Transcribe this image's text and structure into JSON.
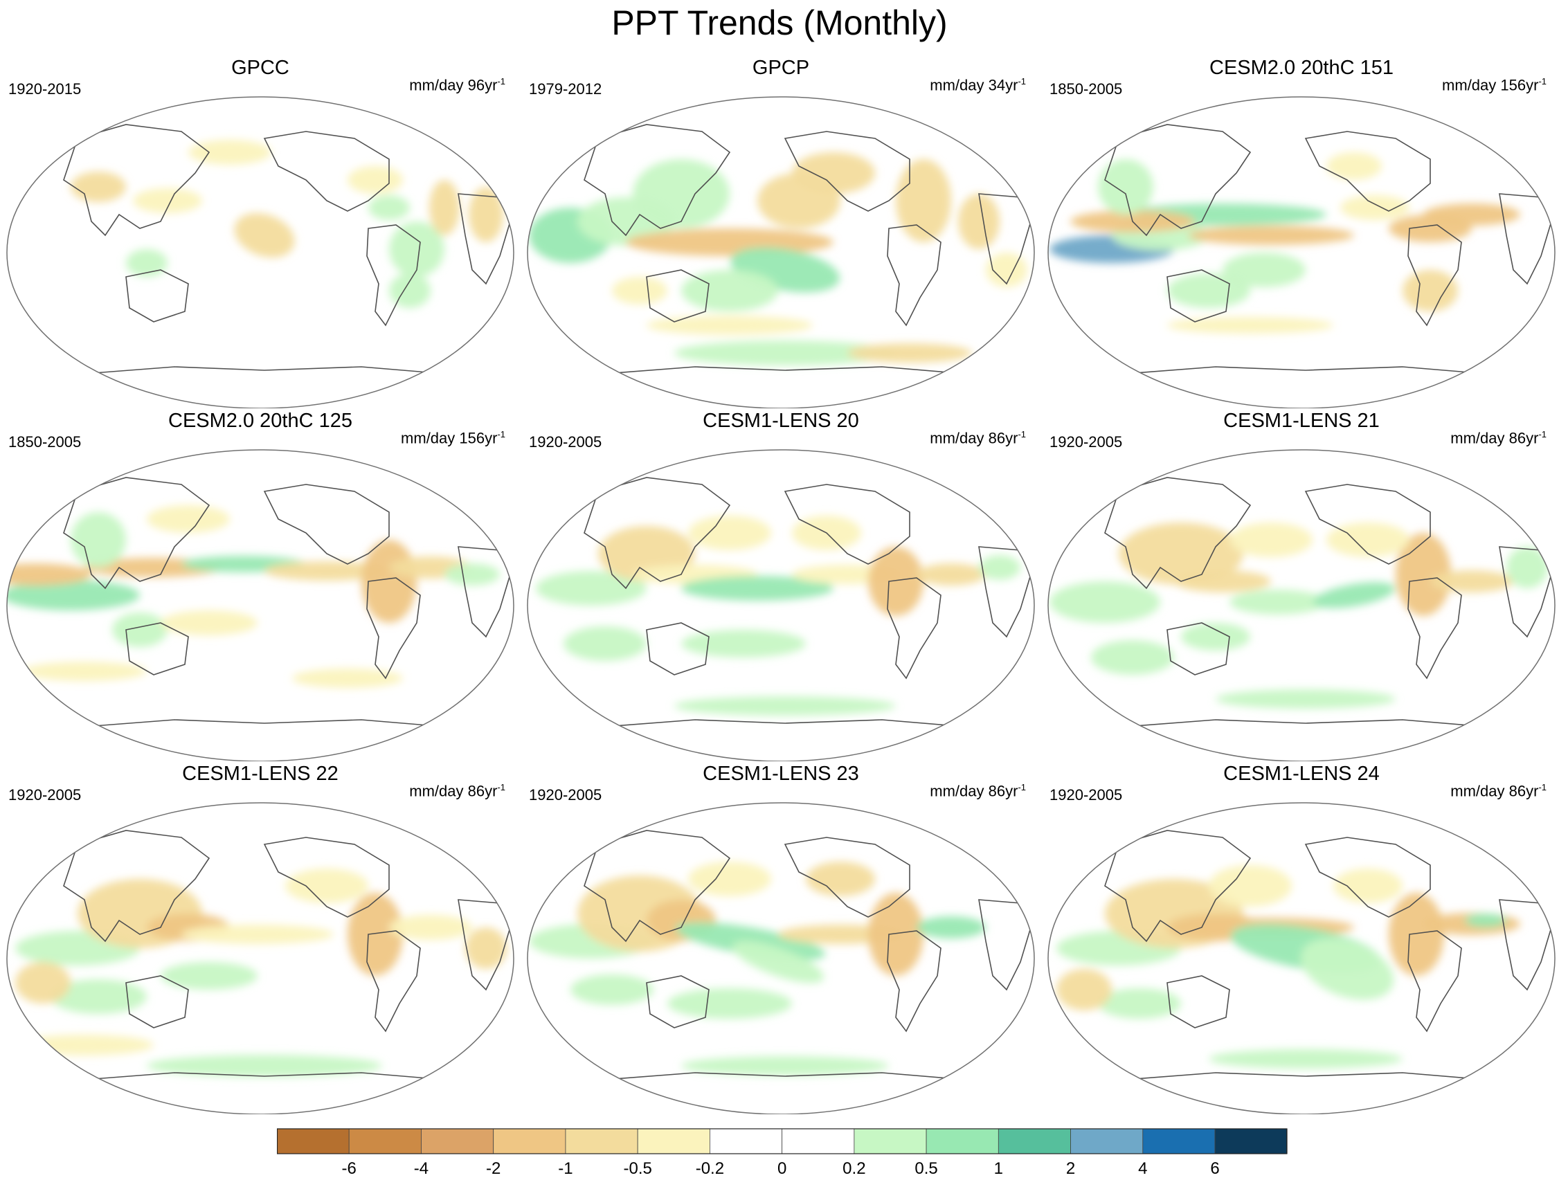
{
  "title": "PPT Trends (Monthly)",
  "colors": {
    "land_outline": "#505050",
    "frame": "#707070"
  },
  "chart_data": {
    "type": "heatmap",
    "title": "PPT Trends (Monthly)",
    "colorbar": {
      "labels": [
        "-6",
        "-4",
        "-2",
        "-1",
        "-0.5",
        "-0.2",
        "0",
        "0.2",
        "0.5",
        "1",
        "2",
        "4",
        "6"
      ],
      "colors": [
        "#b5702f",
        "#cc8a45",
        "#dca367",
        "#efc684",
        "#f3dc9d",
        "#fbf3bd",
        "#ffffff",
        "#ffffff",
        "#c7f7c4",
        "#98e8b2",
        "#56bf9c",
        "#6fa8c8",
        "#1a6fb0",
        "#0d3a5a"
      ]
    },
    "panels": [
      {
        "title": "GPCC",
        "period": "1920-2015",
        "units": "mm/day 96yr",
        "units_sup": "-1",
        "pattern": "gpcc"
      },
      {
        "title": "GPCP",
        "period": "1979-2012",
        "units": "mm/day 34yr",
        "units_sup": "-1",
        "pattern": "gpcp"
      },
      {
        "title": "CESM2.0 20thC 151",
        "period": "1850-2005",
        "units": "mm/day 156yr",
        "units_sup": "-1",
        "pattern": "cesm2a"
      },
      {
        "title": "CESM2.0 20thC 125",
        "period": "1850-2005",
        "units": "mm/day 156yr",
        "units_sup": "-1",
        "pattern": "cesm2b"
      },
      {
        "title": "CESM1-LENS 20",
        "period": "1920-2005",
        "units": "mm/day 86yr",
        "units_sup": "-1",
        "pattern": "lens20"
      },
      {
        "title": "CESM1-LENS 21",
        "period": "1920-2005",
        "units": "mm/day 86yr",
        "units_sup": "-1",
        "pattern": "lens21"
      },
      {
        "title": "CESM1-LENS 22",
        "period": "1920-2005",
        "units": "mm/day 86yr",
        "units_sup": "-1",
        "pattern": "lens22"
      },
      {
        "title": "CESM1-LENS 23",
        "period": "1920-2005",
        "units": "mm/day 86yr",
        "units_sup": "-1",
        "pattern": "lens23"
      },
      {
        "title": "CESM1-LENS 24",
        "period": "1920-2005",
        "units": "mm/day 86yr",
        "units_sup": "-1",
        "pattern": "lens24"
      }
    ]
  }
}
